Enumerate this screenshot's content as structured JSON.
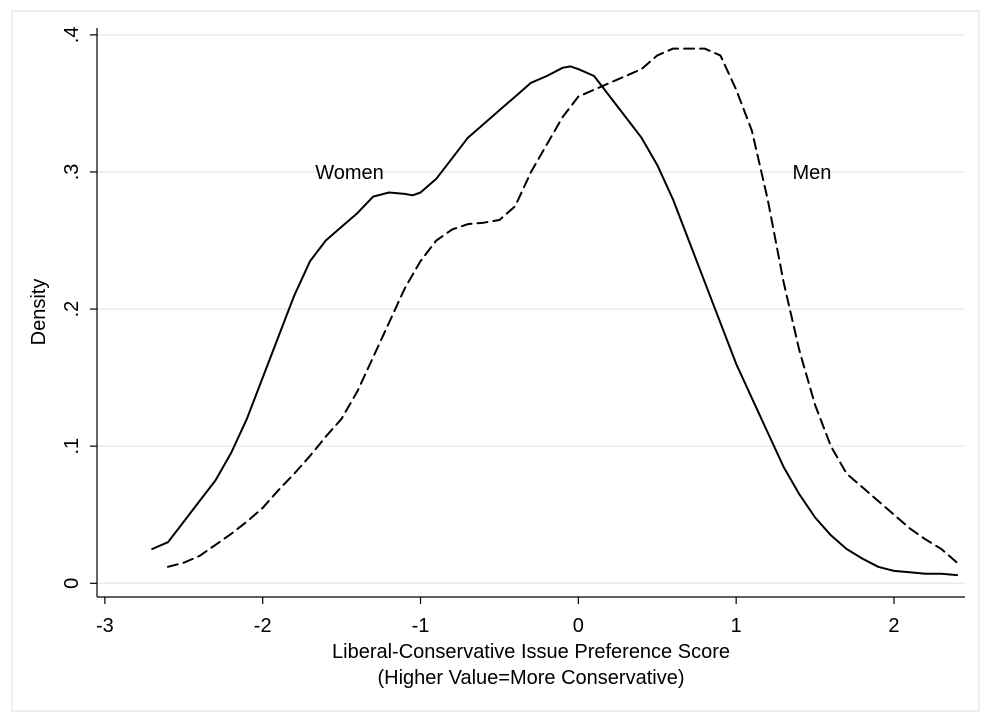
{
  "chart_data": {
    "type": "line",
    "title": "",
    "xlabel_line1": "Liberal-Conservative Issue Preference Score",
    "xlabel_line2": "(Higher Value=More Conservative)",
    "ylabel": "Density",
    "xlim": [
      -3.05,
      2.45
    ],
    "ylim": [
      -0.01,
      0.405
    ],
    "xticks": [
      -3,
      -2,
      -1,
      0,
      1,
      2
    ],
    "xtick_labels": [
      "-3",
      "-2",
      "-1",
      "0",
      "1",
      "2"
    ],
    "yticks": [
      0,
      0.1,
      0.2,
      0.3,
      0.4
    ],
    "ytick_labels": [
      "0",
      ".1",
      ".2",
      ".3",
      ".4"
    ],
    "grid": true,
    "legend": "none",
    "series": [
      {
        "name": "Women",
        "style": "solid",
        "label": {
          "text": "Women",
          "x": -1.45,
          "y": 0.3
        },
        "x": [
          -2.7,
          -2.6,
          -2.5,
          -2.4,
          -2.3,
          -2.2,
          -2.1,
          -2.0,
          -1.9,
          -1.8,
          -1.7,
          -1.6,
          -1.5,
          -1.4,
          -1.3,
          -1.2,
          -1.1,
          -1.05,
          -1.0,
          -0.9,
          -0.8,
          -0.7,
          -0.6,
          -0.5,
          -0.4,
          -0.3,
          -0.2,
          -0.1,
          -0.05,
          0.0,
          0.1,
          0.2,
          0.3,
          0.4,
          0.5,
          0.6,
          0.7,
          0.8,
          0.9,
          1.0,
          1.1,
          1.2,
          1.3,
          1.4,
          1.5,
          1.6,
          1.7,
          1.8,
          1.9,
          2.0,
          2.1,
          2.2,
          2.3,
          2.4
        ],
        "y": [
          0.025,
          0.03,
          0.045,
          0.06,
          0.075,
          0.095,
          0.12,
          0.15,
          0.18,
          0.21,
          0.235,
          0.25,
          0.26,
          0.27,
          0.282,
          0.285,
          0.284,
          0.283,
          0.285,
          0.295,
          0.31,
          0.325,
          0.335,
          0.345,
          0.355,
          0.365,
          0.37,
          0.376,
          0.377,
          0.375,
          0.37,
          0.355,
          0.34,
          0.325,
          0.305,
          0.28,
          0.25,
          0.22,
          0.19,
          0.16,
          0.135,
          0.11,
          0.085,
          0.065,
          0.048,
          0.035,
          0.025,
          0.018,
          0.012,
          0.009,
          0.008,
          0.007,
          0.007,
          0.006
        ]
      },
      {
        "name": "Men",
        "style": "dashed",
        "label": {
          "text": "Men",
          "x": 1.48,
          "y": 0.3
        },
        "x": [
          -2.6,
          -2.5,
          -2.4,
          -2.3,
          -2.2,
          -2.1,
          -2.0,
          -1.9,
          -1.8,
          -1.7,
          -1.6,
          -1.5,
          -1.4,
          -1.3,
          -1.2,
          -1.1,
          -1.0,
          -0.9,
          -0.8,
          -0.7,
          -0.6,
          -0.5,
          -0.4,
          -0.3,
          -0.2,
          -0.1,
          0.0,
          0.1,
          0.2,
          0.3,
          0.4,
          0.5,
          0.6,
          0.7,
          0.8,
          0.9,
          1.0,
          1.1,
          1.2,
          1.3,
          1.4,
          1.5,
          1.6,
          1.7,
          1.8,
          1.9,
          2.0,
          2.1,
          2.2,
          2.3,
          2.4
        ],
        "y": [
          0.012,
          0.015,
          0.02,
          0.028,
          0.036,
          0.045,
          0.055,
          0.068,
          0.08,
          0.093,
          0.107,
          0.12,
          0.14,
          0.165,
          0.19,
          0.215,
          0.235,
          0.25,
          0.258,
          0.262,
          0.263,
          0.265,
          0.275,
          0.3,
          0.32,
          0.34,
          0.355,
          0.36,
          0.365,
          0.37,
          0.375,
          0.385,
          0.39,
          0.39,
          0.39,
          0.385,
          0.36,
          0.33,
          0.28,
          0.22,
          0.17,
          0.13,
          0.1,
          0.08,
          0.07,
          0.06,
          0.05,
          0.04,
          0.032,
          0.025,
          0.015
        ]
      }
    ]
  }
}
